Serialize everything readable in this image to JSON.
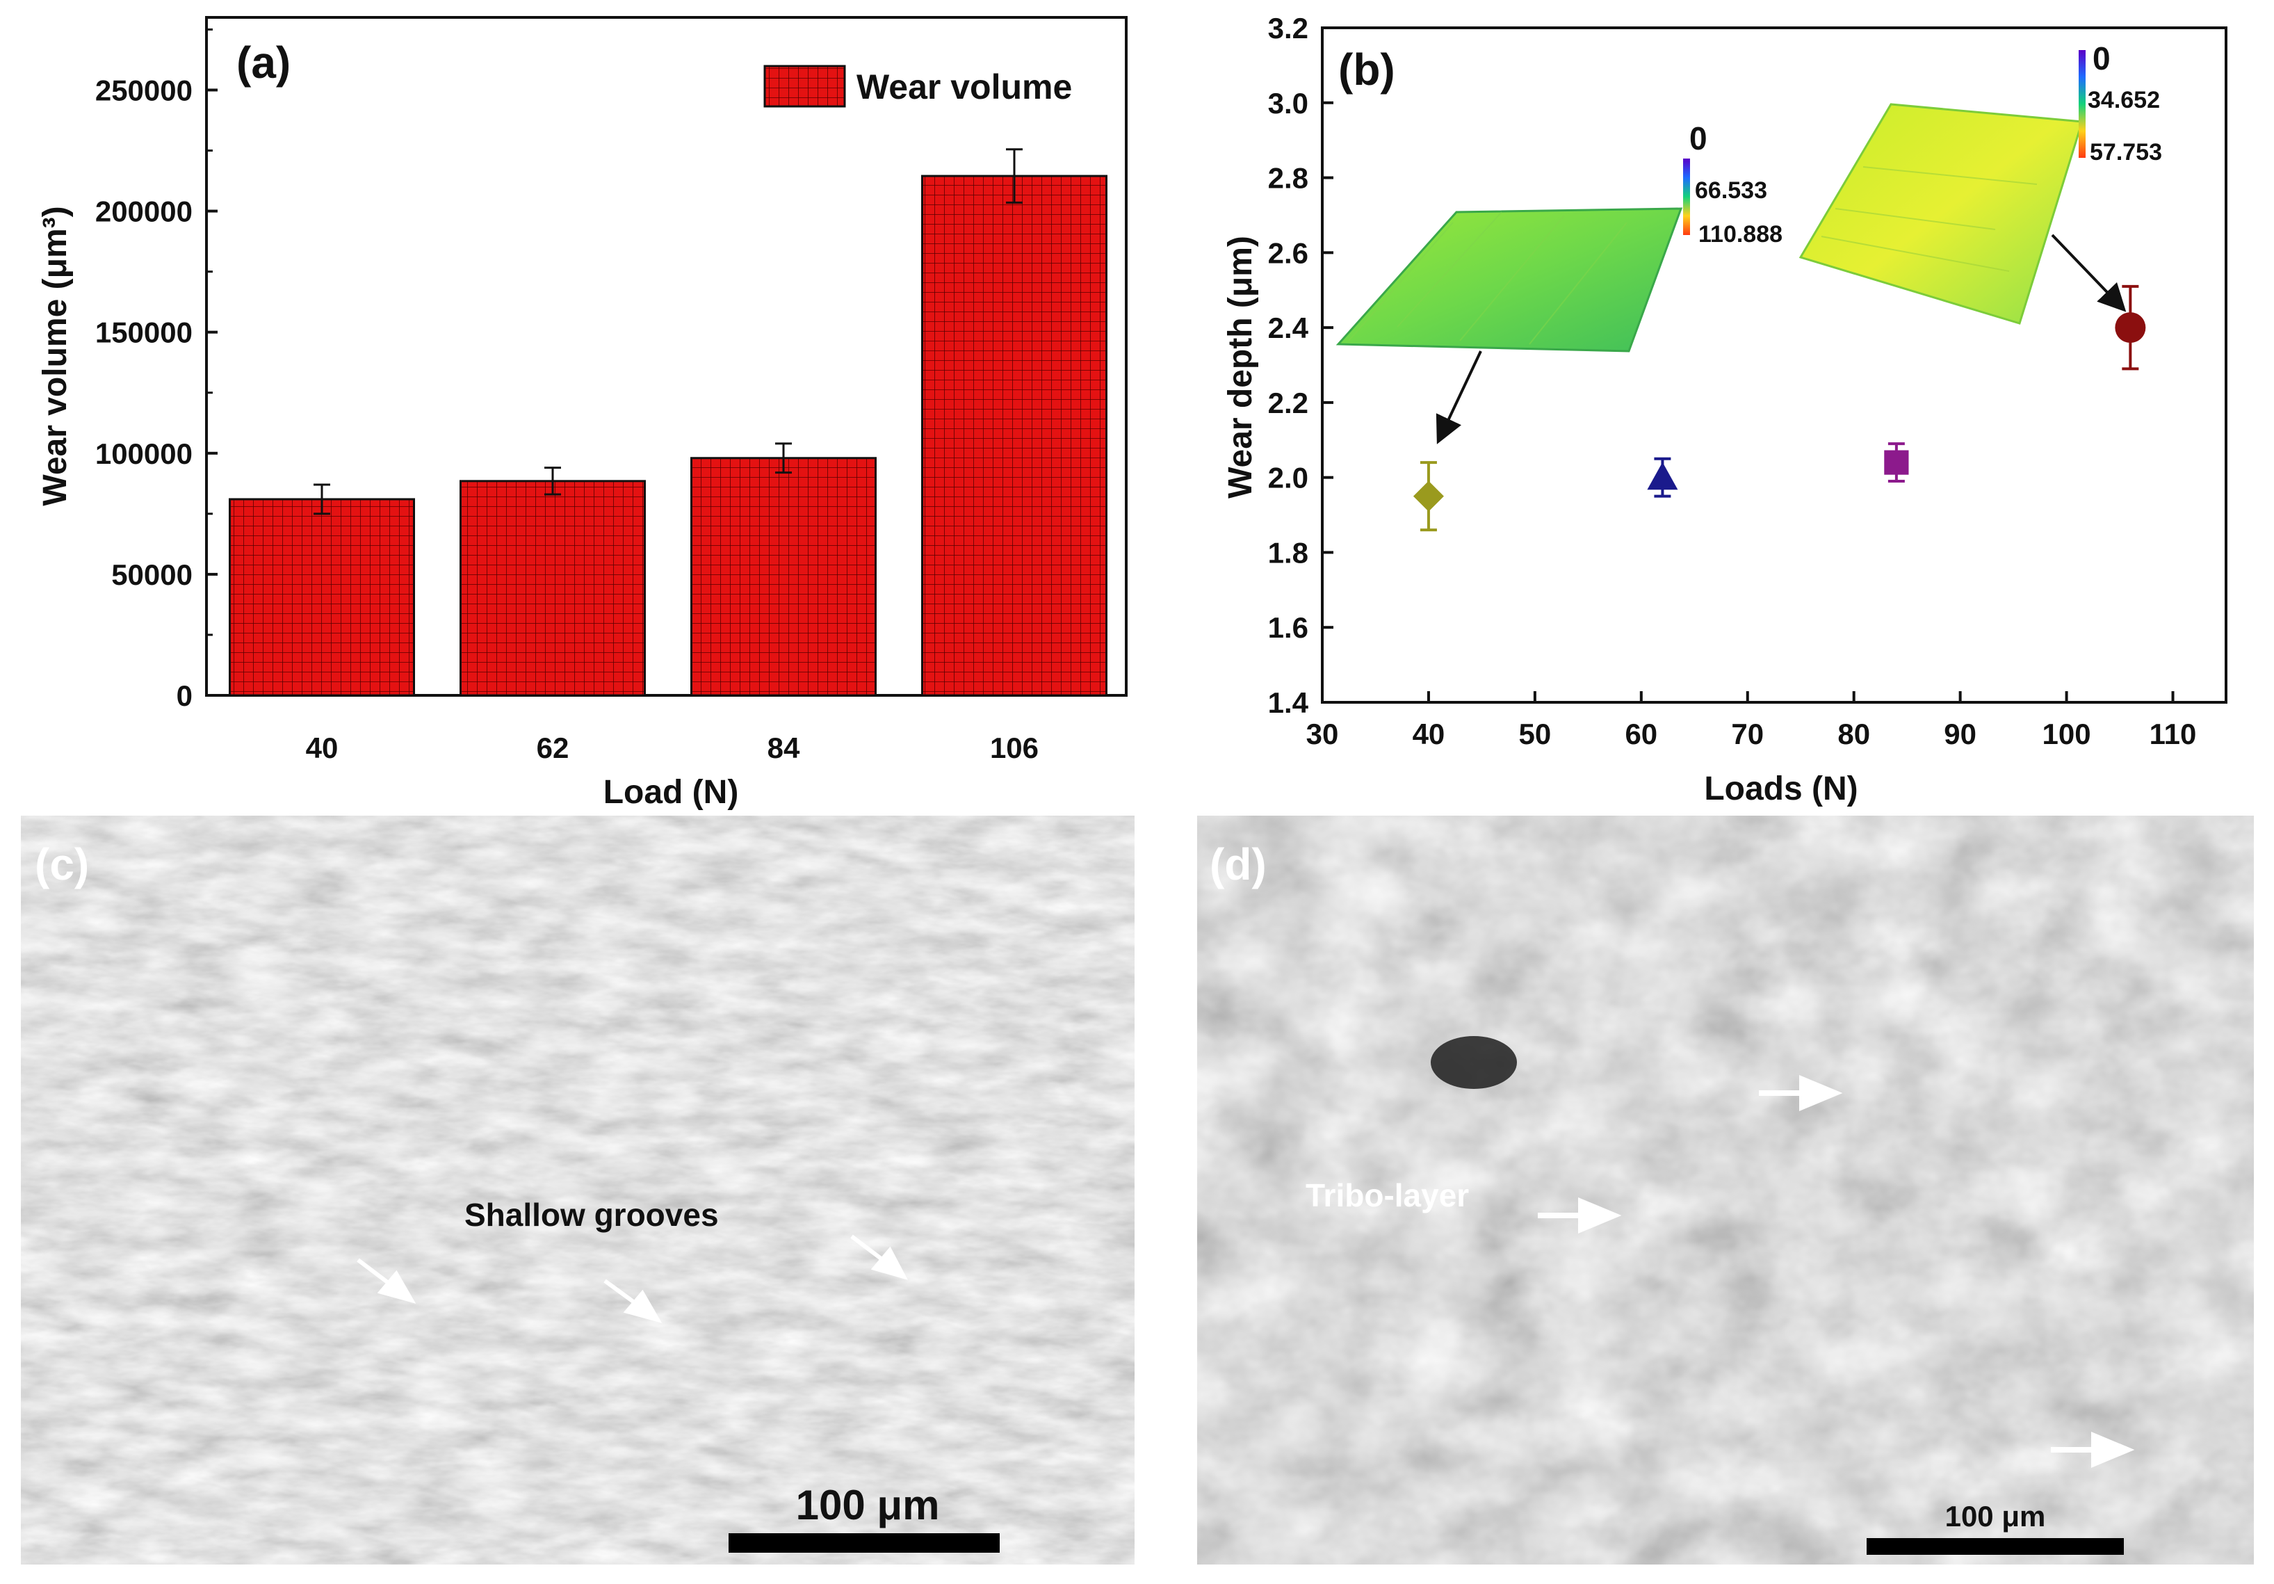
{
  "chart_data": [
    {
      "panel": "(a)",
      "type": "bar",
      "categories": [
        "40",
        "62",
        "84",
        "106"
      ],
      "series": [
        {
          "name": "Wear volume",
          "values": [
            81000,
            88500,
            98000,
            214500
          ],
          "errors": [
            6000,
            5500,
            6000,
            11000
          ],
          "color": "#e01010",
          "pattern": "grid"
        }
      ],
      "xlabel": "Load (N)",
      "ylabel": "Wear volume (μm³)",
      "ylim": [
        0,
        280000
      ],
      "yticks": [
        0,
        50000,
        100000,
        150000,
        200000,
        250000
      ],
      "legend": "top-right",
      "grid": false
    },
    {
      "panel": "(b)",
      "type": "scatter",
      "points": [
        {
          "x": 40,
          "y": 1.95,
          "err": 0.09,
          "marker": "diamond",
          "color": "#9a9a1e"
        },
        {
          "x": 62,
          "y": 2.0,
          "err": 0.05,
          "marker": "triangle",
          "color": "#1a1a8c"
        },
        {
          "x": 84,
          "y": 2.04,
          "err": 0.05,
          "marker": "square",
          "color": "#8c1a8c"
        },
        {
          "x": 106,
          "y": 2.4,
          "err": 0.11,
          "marker": "circle",
          "color": "#8b0f0f"
        }
      ],
      "xlabel": "Loads (N)",
      "ylabel": "Wear depth (μm)",
      "xlim": [
        30,
        115
      ],
      "ylim": [
        1.4,
        3.2
      ],
      "xticks": [
        30,
        40,
        50,
        60,
        70,
        80,
        90,
        100,
        110
      ],
      "yticks": [
        1.4,
        1.6,
        1.8,
        2.0,
        2.2,
        2.4,
        2.6,
        2.8,
        3.0,
        3.2
      ],
      "grid": false,
      "insets": [
        {
          "name": "3D profile 40 N",
          "colorbar": [
            "0",
            "66.533",
            "110.888"
          ],
          "points_to_x": 40
        },
        {
          "name": "3D profile 106 N",
          "colorbar": [
            "0",
            "34.652",
            "57.753"
          ],
          "points_to_x": 106
        }
      ]
    }
  ],
  "panels": {
    "c": {
      "label": "(c)",
      "annotation": "Shallow grooves",
      "scalebar": "100 μm"
    },
    "d": {
      "label": "(d)",
      "annotation": "Tribo-layer",
      "scalebar": "100 μm"
    }
  }
}
